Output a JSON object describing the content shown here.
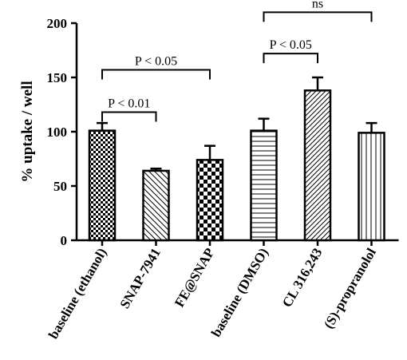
{
  "chart_data": {
    "type": "bar",
    "categories": [
      "baseline (ethanol)",
      "SNAP-7941",
      "FE@SNAP",
      "baseline (DMSO)",
      "CL 316,243",
      "(S)-propranolol"
    ],
    "values": [
      101,
      64,
      74,
      101,
      138,
      99
    ],
    "errors": [
      7,
      2,
      13,
      11,
      12,
      9
    ],
    "patterns": [
      "checker-small",
      "diagonal-sparse",
      "checker-large",
      "horizontal-lines",
      "diagonal-dense",
      "vertical-lines"
    ],
    "ylabel": "% uptake / well",
    "ylim": [
      0,
      200
    ],
    "yticks": [
      0,
      50,
      100,
      150,
      200
    ],
    "grid": false,
    "comparisons": [
      {
        "from": 0,
        "to": 1,
        "label": "P < 0.01",
        "level": 118
      },
      {
        "from": 0,
        "to": 2,
        "label": "P < 0.05",
        "level": 157
      },
      {
        "from": 3,
        "to": 4,
        "label": "P < 0.05",
        "level": 172
      },
      {
        "from": 3,
        "to": 5,
        "label": "ns",
        "level": 210
      }
    ]
  }
}
